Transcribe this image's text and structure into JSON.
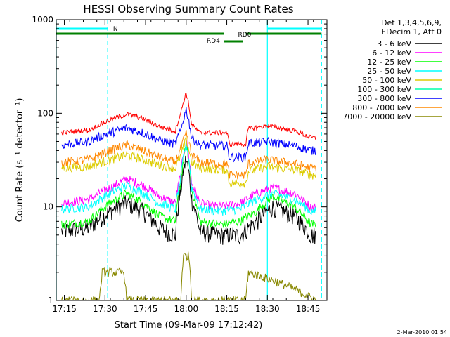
{
  "chart_data": {
    "type": "line",
    "title": "HESSI Observing Summary Count Rates",
    "xlabel": "Start Time (09-Mar-09 17:12:42)",
    "ylabel": "Count Rate (s⁻¹ detector⁻¹)",
    "yscale": "log",
    "xlim": [
      "17:12",
      "18:52"
    ],
    "ylim": [
      1,
      1000
    ],
    "x_ticks": [
      "17:15",
      "17:30",
      "17:45",
      "18:00",
      "18:15",
      "18:30",
      "18:45"
    ],
    "y_ticks": [
      "1",
      "10",
      "100",
      "1000"
    ],
    "legend_position": "right",
    "legend_header": [
      "Det 1,3,4,5,6,9,",
      "FDecim 1, Att 0"
    ],
    "footer_date": "2-Mar-2010 01:54",
    "series": [
      {
        "name": "3 - 6 keV",
        "color": "#000000",
        "x": [
          "17:14",
          "17:24",
          "17:32",
          "17:38",
          "17:44",
          "17:50",
          "17:56",
          "17:58",
          "18:00",
          "18:02",
          "18:05",
          "18:12",
          "18:20",
          "18:26",
          "18:32",
          "18:40",
          "18:46",
          "18:48"
        ],
        "values": [
          5.5,
          6,
          9,
          11,
          9,
          6,
          5,
          15,
          33,
          12,
          5.5,
          5,
          5,
          7,
          10,
          8,
          5,
          5
        ]
      },
      {
        "name": "6 - 12 keV",
        "color": "#ff00ff",
        "x": [
          "17:14",
          "17:24",
          "17:32",
          "17:38",
          "17:44",
          "17:50",
          "17:56",
          "17:58",
          "18:00",
          "18:02",
          "18:05",
          "18:12",
          "18:20",
          "18:26",
          "18:32",
          "18:40",
          "18:46",
          "18:48"
        ],
        "values": [
          11,
          12,
          16,
          20,
          17,
          13,
          11,
          22,
          50,
          18,
          11,
          10,
          11,
          14,
          16,
          14,
          10,
          10
        ]
      },
      {
        "name": "12 - 25 keV",
        "color": "#00ff00",
        "x": [
          "17:14",
          "17:24",
          "17:32",
          "17:38",
          "17:44",
          "17:50",
          "17:56",
          "17:58",
          "18:00",
          "18:02",
          "18:05",
          "18:12",
          "18:20",
          "18:26",
          "18:32",
          "18:40",
          "18:46",
          "18:48"
        ],
        "values": [
          6.5,
          7,
          11,
          14,
          11,
          8,
          7,
          18,
          45,
          15,
          7,
          6.5,
          7,
          9,
          13,
          10,
          6.5,
          6.5
        ]
      },
      {
        "name": "25 - 50 keV",
        "color": "#00ffff",
        "x": [
          "17:14",
          "17:24",
          "17:32",
          "17:38",
          "17:44",
          "17:50",
          "17:56",
          "17:58",
          "18:00",
          "18:02",
          "18:05",
          "18:12",
          "18:20",
          "18:26",
          "18:32",
          "18:40",
          "18:46",
          "18:48"
        ],
        "values": [
          9.5,
          10,
          14,
          17,
          14,
          11,
          9.5,
          20,
          48,
          16,
          9.5,
          9,
          9.5,
          12,
          14,
          12,
          9,
          9
        ]
      },
      {
        "name": "50 - 100 keV",
        "color": "#ddcc00",
        "x": [
          "17:14",
          "17:24",
          "17:32",
          "17:38",
          "17:44",
          "17:50",
          "17:56",
          "17:58",
          "18:00",
          "18:02",
          "18:05",
          "18:12",
          "18:15",
          "18:16",
          "18:22",
          "18:23",
          "18:30",
          "18:40",
          "18:46",
          "18:48"
        ],
        "values": [
          26,
          27,
          32,
          36,
          32,
          28,
          26,
          35,
          52,
          30,
          26,
          25,
          25,
          18,
          18,
          24,
          27,
          25,
          22,
          22
        ]
      },
      {
        "name": "100 - 300 keV",
        "color": "#00ffaa",
        "x": [
          "17:14",
          "17:58",
          "18:00",
          "18:02",
          "18:48"
        ],
        "values": [
          1,
          1,
          1,
          1,
          1
        ]
      },
      {
        "name": "300 - 800 keV",
        "color": "#0000ff",
        "x": [
          "17:14",
          "17:24",
          "17:32",
          "17:38",
          "17:44",
          "17:50",
          "17:56",
          "17:58",
          "18:00",
          "18:02",
          "18:05",
          "18:12",
          "18:15",
          "18:16",
          "18:22",
          "18:23",
          "18:30",
          "18:40",
          "18:46",
          "18:48"
        ],
        "values": [
          46,
          50,
          62,
          70,
          62,
          52,
          47,
          65,
          110,
          55,
          46,
          45,
          45,
          34,
          34,
          48,
          50,
          45,
          40,
          40
        ]
      },
      {
        "name": "800 - 7000 keV",
        "color": "#ff8800",
        "x": [
          "17:14",
          "17:24",
          "17:32",
          "17:38",
          "17:44",
          "17:50",
          "17:56",
          "17:58",
          "18:00",
          "18:02",
          "18:05",
          "18:12",
          "18:15",
          "18:16",
          "18:22",
          "18:23",
          "18:30",
          "18:40",
          "18:46",
          "18:48"
        ],
        "values": [
          30,
          32,
          40,
          46,
          40,
          34,
          30,
          42,
          60,
          36,
          30,
          29,
          29,
          22,
          22,
          29,
          32,
          29,
          26,
          26
        ]
      },
      {
        "name": "7000 - 20000 keV",
        "color": "#888800",
        "x": [
          "17:14",
          "17:28",
          "17:29",
          "17:37",
          "17:38",
          "17:55",
          "17:58",
          "17:59",
          "18:01",
          "18:02",
          "18:22",
          "18:23",
          "18:48"
        ],
        "values": [
          1,
          1,
          2,
          2,
          1,
          1,
          1,
          3,
          3,
          1,
          1,
          2,
          1
        ]
      }
    ],
    "top_series_color": "#ff0000",
    "top_series": {
      "x": [
        "17:14",
        "17:24",
        "17:32",
        "17:38",
        "17:44",
        "17:50",
        "17:56",
        "17:58",
        "18:00",
        "18:02",
        "18:05",
        "18:12",
        "18:15",
        "18:16",
        "18:22",
        "18:23",
        "18:30",
        "18:40",
        "18:46",
        "18:48"
      ],
      "values": [
        62,
        66,
        85,
        98,
        88,
        72,
        64,
        100,
        165,
        75,
        62,
        62,
        62,
        47,
        47,
        68,
        74,
        65,
        55,
        55
      ]
    },
    "annotations": {
      "night_label": "N",
      "rd0_label": "RD0",
      "rd4_label": "RD4",
      "night_color": "#00ffff",
      "rd_color": "#008000"
    }
  }
}
